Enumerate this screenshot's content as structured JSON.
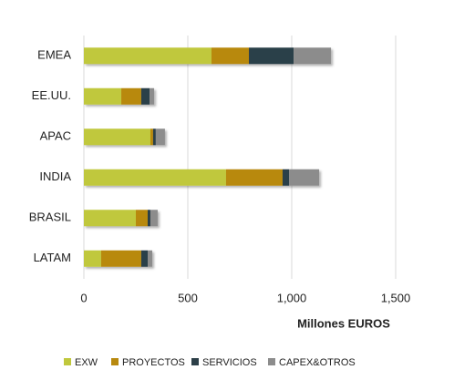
{
  "chart_data": {
    "type": "stacked_barh",
    "categories": [
      "EMEA",
      "EE.UU.",
      "APAC",
      "INDIA",
      "BRASIL",
      "LATAM"
    ],
    "series": [
      {
        "name": "EXW",
        "color": "#c0c83c",
        "values": [
          614,
          180,
          320,
          684,
          250,
          83
        ]
      },
      {
        "name": "PROYECTOS",
        "color": "#b8890f",
        "values": [
          180,
          96,
          13,
          272,
          57,
          193
        ]
      },
      {
        "name": "SERVICIOS",
        "color": "#2c3f48",
        "values": [
          215,
          40,
          13,
          31,
          13,
          31
        ]
      },
      {
        "name": "CAPEX&OTROS",
        "color": "#8c8c8c",
        "values": [
          180,
          22,
          44,
          145,
          35,
          22
        ]
      }
    ],
    "xlabel": "Millones EUROS",
    "xlim": [
      0,
      1500
    ],
    "xticks": [
      0,
      500,
      {
        "value": 1000,
        "label": "1,000"
      },
      {
        "value": 1500,
        "label": "1,500"
      }
    ],
    "grid": true,
    "legend": "bottom"
  }
}
